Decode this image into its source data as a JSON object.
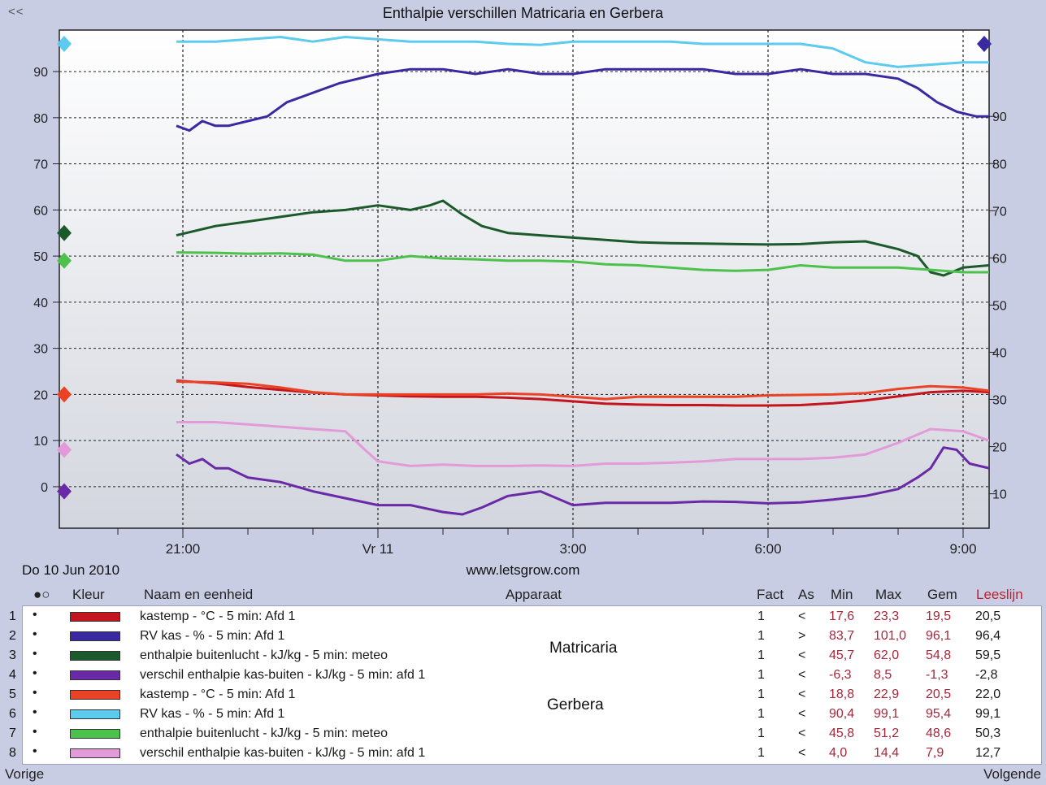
{
  "window": {
    "back_label": "<<",
    "title": "Enthalpie verschillen Matricaria en Gerbera",
    "date": "Do  10  Jun 2010",
    "site": "www.letsgrow.com",
    "prev_label": "Vorige",
    "next_label": "Volgende"
  },
  "legend": {
    "headers": {
      "dot": "●○",
      "kleur": "Kleur",
      "naam": "Naam en eenheid",
      "apparaat": "Apparaat",
      "fact": "Fact",
      "as": "As",
      "min": "Min",
      "max": "Max",
      "gem": "Gem",
      "leeslijn": "Leeslijn"
    },
    "groups": {
      "matricaria": "Matricaria",
      "gerbera": "Gerbera"
    },
    "rows": [
      {
        "num": "1",
        "bullet": "•",
        "color": "#c4141e",
        "name": "kastemp - °C - 5 min: Afd 1",
        "fact": "1",
        "as": "<",
        "min": "17,6",
        "max": "23,3",
        "gem": "19,5",
        "leeslijn": "20,5"
      },
      {
        "num": "2",
        "bullet": "•",
        "color": "#3a2aa2",
        "name": "RV kas - % - 5 min: Afd 1",
        "fact": "1",
        "as": ">",
        "min": "83,7",
        "max": "101,0",
        "gem": "96,1",
        "leeslijn": "96,4"
      },
      {
        "num": "3",
        "bullet": "•",
        "color": "#1c5a2c",
        "name": "enthalpie buitenlucht - kJ/kg - 5 min: meteo",
        "fact": "1",
        "as": "<",
        "min": "45,7",
        "max": "62,0",
        "gem": "54,8",
        "leeslijn": "59,5"
      },
      {
        "num": "4",
        "bullet": "•",
        "color": "#6a2aa8",
        "name": "verschil enthalpie kas-buiten - kJ/kg - 5 min: afd 1",
        "fact": "1",
        "as": "<",
        "min": "-6,3",
        "max": "8,5",
        "gem": "-1,3",
        "leeslijn": "-2,8"
      },
      {
        "num": "5",
        "bullet": "•",
        "color": "#ea4224",
        "name": "kastemp - °C - 5 min: Afd 1",
        "fact": "1",
        "as": "<",
        "min": "18,8",
        "max": "22,9",
        "gem": "20,5",
        "leeslijn": "22,0"
      },
      {
        "num": "6",
        "bullet": "•",
        "color": "#5ccbed",
        "name": "RV kas - % - 5 min: Afd 1",
        "fact": "1",
        "as": "<",
        "min": "90,4",
        "max": "99,1",
        "gem": "95,4",
        "leeslijn": "99,1"
      },
      {
        "num": "7",
        "bullet": "•",
        "color": "#4cc24c",
        "name": "enthalpie buitenlucht - kJ/kg - 5 min: meteo",
        "fact": "1",
        "as": "<",
        "min": "45,8",
        "max": "51,2",
        "gem": "48,6",
        "leeslijn": "50,3"
      },
      {
        "num": "8",
        "bullet": "•",
        "color": "#e39ad9",
        "name": "verschil enthalpie kas-buiten - kJ/kg - 5 min: afd 1",
        "fact": "1",
        "as": "<",
        "min": "4,0",
        "max": "14,4",
        "gem": "7,9",
        "leeslijn": "12,7"
      }
    ]
  },
  "chart_data": {
    "type": "line",
    "title": "Enthalpie verschillen Matricaria en Gerbera",
    "x_unit": "hours from 10 Jun 2010 00:00",
    "xlim": [
      19.1,
      33.4
    ],
    "x_ticks": [
      {
        "x": 21,
        "label": "21:00"
      },
      {
        "x": 24,
        "label": "Vr  11"
      },
      {
        "x": 27,
        "label": "3:00"
      },
      {
        "x": 30,
        "label": "6:00"
      },
      {
        "x": 33,
        "label": "9:00"
      }
    ],
    "y_left": {
      "lim": [
        -9,
        99
      ],
      "ticks": [
        0,
        10,
        20,
        30,
        40,
        50,
        60,
        70,
        80,
        90
      ]
    },
    "y_right": {
      "lim": [
        2.7,
        108.3
      ],
      "ticks": [
        10,
        20,
        30,
        40,
        50,
        60,
        70,
        80,
        90
      ]
    },
    "grid": true,
    "series": [
      {
        "name": "kastemp - °C - 5 min: Afd 1",
        "axis": "left",
        "color": "#c4141e",
        "x": [
          20.9,
          21.5,
          22.0,
          22.5,
          23.0,
          23.5,
          24.0,
          24.5,
          25.0,
          25.5,
          26.0,
          26.5,
          27.0,
          27.5,
          28.0,
          28.5,
          29.0,
          29.5,
          30.0,
          30.5,
          31.0,
          31.5,
          32.0,
          32.5,
          33.0,
          33.4
        ],
        "y": [
          23.0,
          22.4,
          21.6,
          21.0,
          20.4,
          20.0,
          19.8,
          19.6,
          19.5,
          19.5,
          19.3,
          19.0,
          18.5,
          18.0,
          17.8,
          17.7,
          17.7,
          17.6,
          17.6,
          17.7,
          18.1,
          18.7,
          19.6,
          20.5,
          20.8,
          20.5
        ]
      },
      {
        "name": "RV kas - % - 5 min: Afd 1",
        "axis": "right",
        "color": "#3a2aa2",
        "x": [
          20.9,
          21.1,
          21.3,
          21.5,
          21.7,
          22.0,
          22.3,
          22.6,
          23.0,
          23.4,
          24.0,
          24.5,
          25.0,
          25.5,
          26.0,
          26.5,
          27.0,
          27.5,
          28.0,
          28.5,
          29.0,
          29.5,
          30.0,
          30.5,
          31.0,
          31.5,
          32.0,
          32.3,
          32.6,
          32.9,
          33.2,
          33.4
        ],
        "y": [
          88,
          87,
          89,
          88,
          88,
          89,
          90,
          93,
          95,
          97,
          99,
          100,
          100,
          99,
          100,
          99,
          99,
          100,
          100,
          100,
          100,
          99,
          99,
          100,
          99,
          99,
          98,
          96,
          93,
          91,
          90,
          90
        ]
      },
      {
        "name": "enthalpie buitenlucht - kJ/kg - 5 min: meteo",
        "axis": "left",
        "color": "#1c5a2c",
        "x": [
          20.9,
          21.5,
          22.0,
          22.5,
          23.0,
          23.5,
          24.0,
          24.5,
          24.8,
          25.0,
          25.3,
          25.6,
          26.0,
          26.5,
          27.0,
          27.5,
          28.0,
          28.5,
          29.0,
          29.5,
          30.0,
          30.5,
          31.0,
          31.5,
          32.0,
          32.3,
          32.5,
          32.7,
          33.0,
          33.4
        ],
        "y": [
          54.5,
          56.5,
          57.5,
          58.5,
          59.5,
          60,
          61,
          60,
          61,
          62,
          59,
          56.5,
          55,
          54.5,
          54,
          53.5,
          53,
          52.8,
          52.7,
          52.6,
          52.5,
          52.6,
          53,
          53.2,
          51.5,
          50,
          46.5,
          45.8,
          47.5,
          48
        ]
      },
      {
        "name": "verschil enthalpie kas-buiten - kJ/kg - 5 min: afd 1",
        "axis": "left",
        "color": "#6a2aa8",
        "x": [
          20.9,
          21.1,
          21.3,
          21.5,
          21.7,
          22.0,
          22.5,
          23.0,
          23.5,
          24.0,
          24.5,
          25.0,
          25.3,
          25.6,
          26.0,
          26.5,
          27.0,
          27.5,
          28.0,
          28.5,
          29.0,
          29.5,
          30.0,
          30.5,
          31.0,
          31.5,
          32.0,
          32.3,
          32.5,
          32.7,
          32.9,
          33.1,
          33.4
        ],
        "y": [
          7,
          5,
          6,
          4,
          4,
          2,
          1,
          -1,
          -2.5,
          -4,
          -4,
          -5.5,
          -6,
          -4.5,
          -2,
          -1,
          -4,
          -3.5,
          -3.5,
          -3.5,
          -3.2,
          -3.3,
          -3.6,
          -3.4,
          -2.8,
          -2,
          -0.5,
          2,
          4,
          8.5,
          8,
          5,
          4
        ]
      },
      {
        "name": "kastemp - °C - 5 min: Afd 1",
        "axis": "left",
        "color": "#ea4224",
        "x": [
          20.9,
          21.5,
          22.0,
          22.5,
          23.0,
          23.5,
          24.0,
          24.5,
          25.0,
          25.5,
          26.0,
          26.5,
          27.0,
          27.5,
          28.0,
          28.5,
          29.0,
          29.5,
          30.0,
          30.5,
          31.0,
          31.5,
          32.0,
          32.5,
          33.0,
          33.4
        ],
        "y": [
          22.8,
          22.6,
          22.3,
          21.5,
          20.5,
          20.0,
          20.0,
          20.0,
          20.0,
          20.0,
          20.2,
          20.0,
          19.5,
          19.0,
          19.5,
          19.5,
          19.5,
          19.5,
          19.8,
          19.9,
          20.0,
          20.3,
          21.2,
          21.8,
          21.5,
          20.8
        ]
      },
      {
        "name": "RV kas - % - 5 min: Afd 1",
        "axis": "left",
        "color": "#5ccbed",
        "x": [
          20.9,
          21.5,
          22.0,
          22.5,
          23.0,
          23.5,
          24.0,
          24.5,
          25.0,
          25.5,
          26.0,
          26.5,
          27.0,
          27.5,
          28.0,
          28.5,
          29.0,
          29.5,
          30.0,
          30.5,
          31.0,
          31.5,
          32.0,
          32.5,
          33.0,
          33.4
        ],
        "y": [
          96.5,
          96.5,
          97,
          97.5,
          96.5,
          97.5,
          97,
          96.5,
          96.5,
          96.5,
          96,
          95.8,
          96.5,
          96.5,
          96.5,
          96.5,
          96,
          96,
          96,
          96,
          95,
          92,
          91,
          91.5,
          92,
          92
        ]
      },
      {
        "name": "enthalpie buitenlucht - kJ/kg - 5 min: meteo",
        "axis": "left",
        "color": "#4cc24c",
        "x": [
          20.9,
          21.5,
          22.0,
          22.5,
          23.0,
          23.5,
          24.0,
          24.5,
          25.0,
          25.5,
          26.0,
          26.5,
          27.0,
          27.5,
          28.0,
          28.5,
          29.0,
          29.5,
          30.0,
          30.5,
          31.0,
          31.5,
          32.0,
          32.5,
          33.0,
          33.4
        ],
        "y": [
          50.8,
          50.7,
          50.5,
          50.6,
          50.3,
          49,
          49,
          50,
          49.5,
          49.3,
          49,
          49,
          48.8,
          48.2,
          48,
          47.5,
          47,
          46.8,
          47,
          48,
          47.5,
          47.5,
          47.5,
          47,
          46.5,
          46.5
        ]
      },
      {
        "name": "verschil enthalpie kas-buiten - kJ/kg - 5 min: afd 1",
        "axis": "left",
        "color": "#e39ad9",
        "x": [
          20.9,
          21.5,
          22.0,
          22.5,
          23.0,
          23.5,
          23.8,
          24.0,
          24.5,
          25.0,
          25.5,
          26.0,
          26.5,
          27.0,
          27.5,
          28.0,
          28.5,
          29.0,
          29.5,
          30.0,
          30.5,
          31.0,
          31.5,
          32.0,
          32.5,
          33.0,
          33.4
        ],
        "y": [
          14,
          14,
          13.5,
          13,
          12.5,
          12,
          8,
          5.5,
          4.5,
          4.8,
          4.5,
          4.5,
          4.6,
          4.5,
          5,
          5,
          5.2,
          5.5,
          6,
          6,
          6,
          6.3,
          7,
          9.5,
          12.5,
          12,
          10
        ]
      }
    ],
    "left_markers": [
      {
        "y": 96,
        "color": "#5ccbed",
        "shape": "diamond"
      },
      {
        "y": 55,
        "color": "#1c5a2c",
        "shape": "diamond"
      },
      {
        "y": 49,
        "color": "#4cc24c",
        "shape": "diamond"
      },
      {
        "y": 20,
        "color": "#ea4224",
        "shape": "diamond"
      },
      {
        "y": 8,
        "color": "#e39ad9",
        "shape": "diamond"
      },
      {
        "y": -1,
        "color": "#6a2aa8",
        "shape": "diamond"
      }
    ],
    "right_markers": [
      {
        "y": 96,
        "color": "#3a2aa2",
        "shape": "diamond"
      }
    ]
  }
}
